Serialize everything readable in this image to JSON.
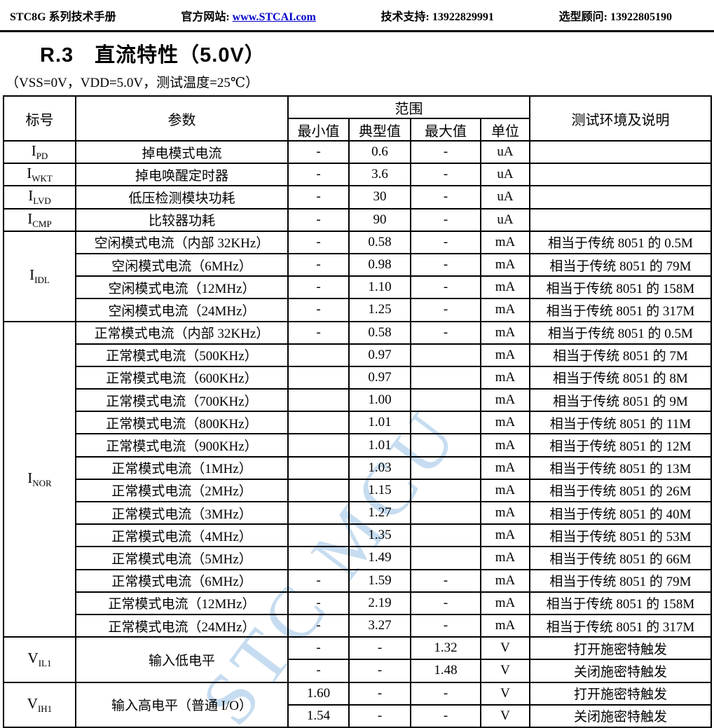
{
  "page_header": {
    "manual_title": "STC8G 系列技术手册",
    "site_label": "官方网站:",
    "site_link": "www.STCAI.com",
    "support": "技术支持: 13922829991",
    "advisor": "选型顾问: 13922805190"
  },
  "section": {
    "heading": "R.3　直流特性（5.0V）",
    "conditions": "（VSS=0V，VDD=5.0V，测试温度=25℃）"
  },
  "watermark": {
    "text": "STC MCU",
    "color": "#8ebae2"
  },
  "table": {
    "header": {
      "symbol": "标号",
      "parameter": "参数",
      "range": "范围",
      "min": "最小值",
      "typical": "典型值",
      "max": "最大值",
      "unit": "单位",
      "conditions": "测试环境及说明"
    },
    "rows": [
      {
        "symbol": {
          "base": "I",
          "sub": "PD",
          "rowspan": 1
        },
        "param": {
          "text": "掉电模式电流",
          "rowspan": 1
        },
        "min": "-",
        "typ": "0.6",
        "max": "-",
        "unit": "uA",
        "note": ""
      },
      {
        "symbol": {
          "base": "I",
          "sub": "WKT",
          "rowspan": 1
        },
        "param": {
          "text": "掉电唤醒定时器",
          "rowspan": 1
        },
        "min": "-",
        "typ": "3.6",
        "max": "-",
        "unit": "uA",
        "note": ""
      },
      {
        "symbol": {
          "base": "I",
          "sub": "LVD",
          "rowspan": 1
        },
        "param": {
          "text": "低压检测模块功耗",
          "rowspan": 1
        },
        "min": "-",
        "typ": "30",
        "max": "-",
        "unit": "uA",
        "note": ""
      },
      {
        "symbol": {
          "base": "I",
          "sub": "CMP",
          "rowspan": 1
        },
        "param": {
          "text": "比较器功耗",
          "rowspan": 1
        },
        "min": "-",
        "typ": "90",
        "max": "-",
        "unit": "uA",
        "note": ""
      },
      {
        "symbol": {
          "base": "I",
          "sub": "IDL",
          "rowspan": 4
        },
        "param": {
          "text": "空闲模式电流（内部 32KHz）",
          "rowspan": 1
        },
        "min": "-",
        "typ": "0.58",
        "max": "-",
        "unit": "mA",
        "note": "相当于传统 8051 的 0.5M"
      },
      {
        "param": {
          "text": "空闲模式电流（6MHz）",
          "rowspan": 1
        },
        "min": "-",
        "typ": "0.98",
        "max": "-",
        "unit": "mA",
        "note": "相当于传统 8051 的 79M"
      },
      {
        "param": {
          "text": "空闲模式电流（12MHz）",
          "rowspan": 1
        },
        "min": "-",
        "typ": "1.10",
        "max": "-",
        "unit": "mA",
        "note": "相当于传统 8051 的 158M"
      },
      {
        "param": {
          "text": "空闲模式电流（24MHz）",
          "rowspan": 1
        },
        "min": "-",
        "typ": "1.25",
        "max": "-",
        "unit": "mA",
        "note": "相当于传统 8051 的 317M"
      },
      {
        "symbol": {
          "base": "I",
          "sub": "NOR",
          "rowspan": 14
        },
        "param": {
          "text": "正常模式电流（内部 32KHz）",
          "rowspan": 1
        },
        "min": "-",
        "typ": "0.58",
        "max": "-",
        "unit": "mA",
        "note": "相当于传统 8051 的 0.5M"
      },
      {
        "param": {
          "text": "正常模式电流（500KHz）",
          "rowspan": 1
        },
        "min": "",
        "typ": "0.97",
        "max": "",
        "unit": "mA",
        "note": "相当于传统 8051 的 7M"
      },
      {
        "param": {
          "text": "正常模式电流（600KHz）",
          "rowspan": 1
        },
        "min": "",
        "typ": "0.97",
        "max": "",
        "unit": "mA",
        "note": "相当于传统 8051 的 8M"
      },
      {
        "param": {
          "text": "正常模式电流（700KHz）",
          "rowspan": 1
        },
        "min": "",
        "typ": "1.00",
        "max": "",
        "unit": "mA",
        "note": "相当于传统 8051 的 9M"
      },
      {
        "param": {
          "text": "正常模式电流（800KHz）",
          "rowspan": 1
        },
        "min": "",
        "typ": "1.01",
        "max": "",
        "unit": "mA",
        "note": "相当于传统 8051 的 11M"
      },
      {
        "param": {
          "text": "正常模式电流（900KHz）",
          "rowspan": 1
        },
        "min": "",
        "typ": "1.01",
        "max": "",
        "unit": "mA",
        "note": "相当于传统 8051 的 12M"
      },
      {
        "param": {
          "text": "正常模式电流（1MHz）",
          "rowspan": 1
        },
        "min": "",
        "typ": "1.03",
        "max": "",
        "unit": "mA",
        "note": "相当于传统 8051 的 13M"
      },
      {
        "param": {
          "text": "正常模式电流（2MHz）",
          "rowspan": 1
        },
        "min": "",
        "typ": "1.15",
        "max": "",
        "unit": "mA",
        "note": "相当于传统 8051 的 26M"
      },
      {
        "param": {
          "text": "正常模式电流（3MHz）",
          "rowspan": 1
        },
        "min": "",
        "typ": "1.27",
        "max": "",
        "unit": "mA",
        "note": "相当于传统 8051 的 40M"
      },
      {
        "param": {
          "text": "正常模式电流（4MHz）",
          "rowspan": 1
        },
        "min": "",
        "typ": "1.35",
        "max": "",
        "unit": "mA",
        "note": "相当于传统 8051 的 53M"
      },
      {
        "param": {
          "text": "正常模式电流（5MHz）",
          "rowspan": 1
        },
        "min": "",
        "typ": "1.49",
        "max": "",
        "unit": "mA",
        "note": "相当于传统 8051 的 66M"
      },
      {
        "param": {
          "text": "正常模式电流（6MHz）",
          "rowspan": 1
        },
        "min": "-",
        "typ": "1.59",
        "max": "-",
        "unit": "mA",
        "note": "相当于传统 8051 的 79M"
      },
      {
        "param": {
          "text": "正常模式电流（12MHz）",
          "rowspan": 1
        },
        "min": "-",
        "typ": "2.19",
        "max": "-",
        "unit": "mA",
        "note": "相当于传统 8051 的 158M"
      },
      {
        "param": {
          "text": "正常模式电流（24MHz）",
          "rowspan": 1
        },
        "min": "-",
        "typ": "3.27",
        "max": "-",
        "unit": "mA",
        "note": "相当于传统 8051 的 317M"
      },
      {
        "symbol": {
          "base": "V",
          "sub": "IL1",
          "rowspan": 2
        },
        "param": {
          "text": "输入低电平",
          "rowspan": 2
        },
        "min": "-",
        "typ": "-",
        "max": "1.32",
        "unit": "V",
        "note": "打开施密特触发"
      },
      {
        "min": "-",
        "typ": "-",
        "max": "1.48",
        "unit": "V",
        "note": "关闭施密特触发"
      },
      {
        "symbol": {
          "base": "V",
          "sub": "IH1",
          "rowspan": 2
        },
        "param": {
          "text": "输入高电平（普通 I/O）",
          "rowspan": 2
        },
        "min": "1.60",
        "typ": "-",
        "max": "-",
        "unit": "V",
        "note": "打开施密特触发"
      },
      {
        "min": "1.54",
        "typ": "-",
        "max": "-",
        "unit": "V",
        "note": "关闭施密特触发"
      },
      {
        "partial": true,
        "symbol": {
          "base": "",
          "sub": "",
          "rowspan": 1
        },
        "param": {
          "text": "",
          "rowspan": 1
        },
        "min": "",
        "typ": "",
        "max": "",
        "unit": "",
        "note": ""
      }
    ]
  }
}
